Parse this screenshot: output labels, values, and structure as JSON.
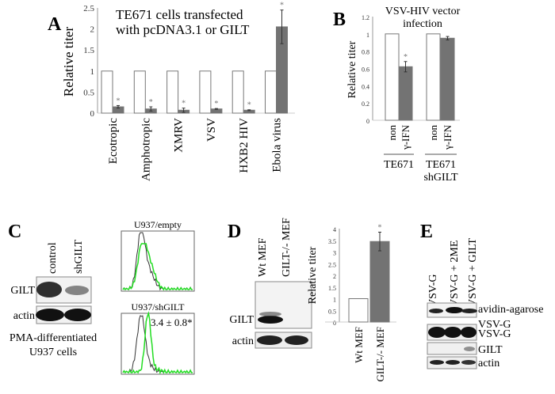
{
  "panels": {
    "A": {
      "label": "A",
      "title_line1": "TE671 cells transfected",
      "title_line2": "with pcDNA3.1 or GILT"
    },
    "B": {
      "label": "B",
      "title_line1": "VSV-HIV vector",
      "title_line2": "infection",
      "group1": "TE671",
      "group2_line1": "TE671",
      "group2_line2": "shGILT"
    },
    "C": {
      "label": "C",
      "lanes": [
        "control",
        "shGILT"
      ],
      "rows": [
        "GILT",
        "actin"
      ],
      "caption_line1": "PMA-differentiated",
      "caption_line2": "U937 cells",
      "hist1_title": "U937/empty",
      "hist2_title": "U937/shGILT",
      "hist2_annotation": "3.4 ± 0.8*"
    },
    "D": {
      "label": "D",
      "lanes": [
        "Wt MEF",
        "GILT-/- MEF"
      ],
      "rows": [
        "GILT",
        "actin"
      ]
    },
    "E": {
      "label": "E",
      "lanes": [
        "VSV-G",
        "VSV-G + 2ME",
        "VSV-G + GILT"
      ],
      "rows": [
        "avidin-agarose",
        "VSV-G",
        "VSV-G",
        "GILT",
        "actin"
      ]
    }
  },
  "chart_data": [
    {
      "type": "bar",
      "panel": "A",
      "ylabel": "Relative titer",
      "ylim": [
        0,
        2.5
      ],
      "yticks": [
        "0",
        "0.5",
        "1",
        "1.5",
        "2",
        "2.5"
      ],
      "categories": [
        "Ecotropic",
        "Amphotropic",
        "XMRV",
        "VSV",
        "HXB2 HIV",
        "Ebola virus"
      ],
      "series": [
        {
          "name": "pcDNA3.1",
          "values": [
            1,
            1,
            1,
            1,
            1,
            1
          ]
        },
        {
          "name": "GILT",
          "values": [
            0.15,
            0.1,
            0.07,
            0.1,
            0.07,
            2.05
          ],
          "errors": [
            0.03,
            0.05,
            0.05,
            0.01,
            0.01,
            0.4
          ],
          "significance": [
            "*",
            "*",
            "*",
            "*",
            "*",
            "*"
          ]
        }
      ],
      "colors": {
        "control": "#ffffff",
        "treated": "#737373"
      }
    },
    {
      "type": "bar",
      "panel": "B",
      "ylabel": "Relative titer",
      "ylim": [
        0,
        1.2
      ],
      "yticks": [
        "0",
        "0.2",
        "0.4",
        "0.6",
        "0.8",
        "1",
        "1.2"
      ],
      "categories": [
        "non",
        "γ-IFN",
        "non",
        "γ-IFN"
      ],
      "values": [
        1,
        0.62,
        1,
        0.95
      ],
      "errors": [
        0,
        0.06,
        0,
        0.02
      ],
      "significance": [
        "",
        "*",
        "",
        ""
      ]
    },
    {
      "type": "bar",
      "panel": "D",
      "ylabel": "Relative titer",
      "ylim": [
        0,
        4
      ],
      "yticks": [
        "0",
        "0.5",
        "1",
        "1.5",
        "2",
        "2.5",
        "3",
        "3.5",
        "4"
      ],
      "categories": [
        "Wt MEF",
        "GILT-/- MEF"
      ],
      "values": [
        1,
        3.45
      ],
      "errors": [
        0,
        0.4
      ],
      "significance": [
        "",
        "*"
      ]
    }
  ]
}
